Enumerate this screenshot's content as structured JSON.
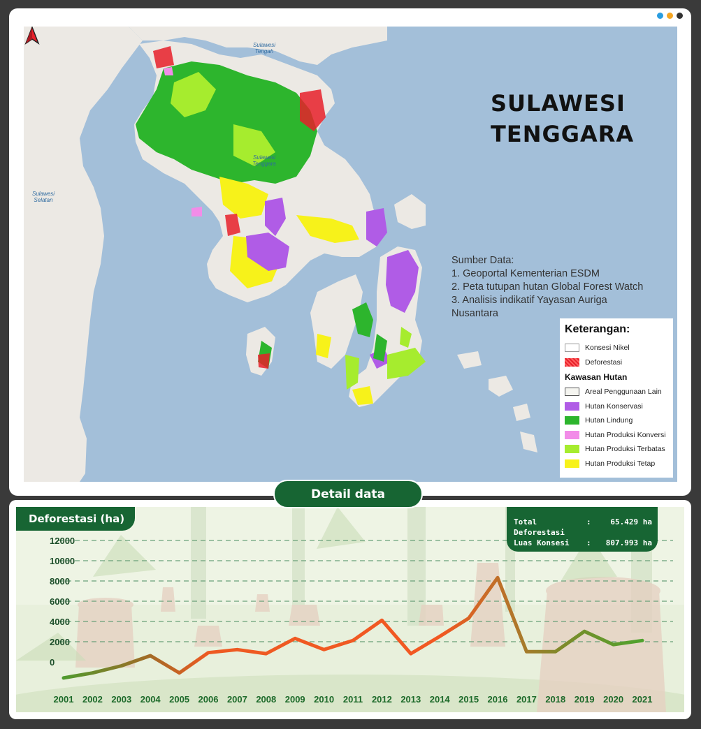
{
  "window": {
    "dot_colors": [
      "#2a9de0",
      "#f5a623",
      "#333333"
    ]
  },
  "map": {
    "title_line1": "SULAWESI",
    "title_line2": "TENGGARA",
    "labels": {
      "sulawesi_tengah": "Sulawesi Tengah",
      "sulawesi_tenggara": "Sulawesi Tenggara",
      "sulawesi_selatan": "Sulawesi Selatan"
    },
    "sources": {
      "heading": "Sumber Data:",
      "items": [
        "1. Geoportal Kementerian ESDM",
        "2. Peta tutupan hutan Global Forest Watch",
        "3. Analisis indikatif Yayasan Auriga",
        "Nusantara"
      ]
    },
    "legend": {
      "title": "Keterangan:",
      "items": [
        {
          "label": "Konsesi Nikel",
          "color": "#ffffff"
        },
        {
          "label": "Deforestasi",
          "color": "#e8202a"
        }
      ],
      "subtitle": "Kawasan Hutan",
      "forest_items": [
        {
          "label": "Areal Penggunaan Lain",
          "color": "#f5f5f0"
        },
        {
          "label": "Hutan Konservasi",
          "color": "#b05ce6"
        },
        {
          "label": "Hutan Lindung",
          "color": "#2db52d"
        },
        {
          "label": "Hutan Produksi Konversi",
          "color": "#f28ce8"
        },
        {
          "label": "Hutan Produksi Terbatas",
          "color": "#a6ec2e"
        },
        {
          "label": "Hutan Produksi Tetap",
          "color": "#f7f21a"
        }
      ]
    }
  },
  "detail_button": "Detail data",
  "chart_data": {
    "type": "line",
    "title": "Deforestasi (ha)",
    "x": [
      "2001",
      "2002",
      "2003",
      "2004",
      "2005",
      "2006",
      "2007",
      "2008",
      "2009",
      "2010",
      "2011",
      "2012",
      "2013",
      "2014",
      "2015",
      "2016",
      "2017",
      "2018",
      "2019",
      "2020",
      "2021"
    ],
    "series": [
      {
        "values": [
          -200,
          300,
          1000,
          2000,
          300,
          2300,
          2600,
          2200,
          3700,
          2600,
          3500,
          5500,
          2200,
          3900,
          5700,
          9700,
          2400,
          2400,
          4400,
          3100,
          3500
        ]
      }
    ],
    "y_ticks": [
      "0",
      "2000",
      "4000",
      "6000",
      "8000",
      "10000",
      "12000"
    ],
    "ylim": [
      0,
      12000
    ],
    "grid": "horizontal dashed",
    "summary": [
      {
        "label": "Total Deforestasi",
        "value": "65.429 ha"
      },
      {
        "label": "Luas Konsesi",
        "value": "807.993 ha"
      }
    ]
  }
}
